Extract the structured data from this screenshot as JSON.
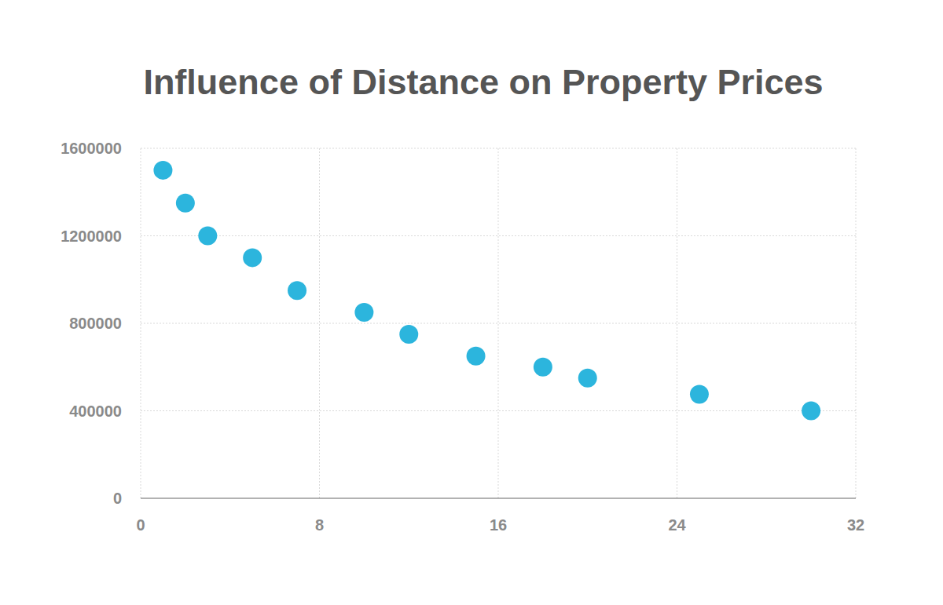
{
  "chart_data": {
    "type": "scatter",
    "title": "Influence of Distance on Property Prices",
    "x": [
      1,
      2,
      3,
      5,
      7,
      10,
      12,
      15,
      18,
      20,
      25,
      30
    ],
    "values": [
      1500000,
      1350000,
      1200000,
      1100000,
      950000,
      850000,
      750000,
      650000,
      600000,
      550000,
      475000,
      400000
    ],
    "color": "#2cb5dd",
    "marker": "circle",
    "xlim": [
      0,
      32
    ],
    "xticks": [
      0,
      8,
      16,
      24,
      32
    ],
    "ylim": [
      0,
      1600000
    ],
    "yticks": [
      0,
      400000,
      800000,
      1200000,
      1600000
    ],
    "grid": true
  }
}
